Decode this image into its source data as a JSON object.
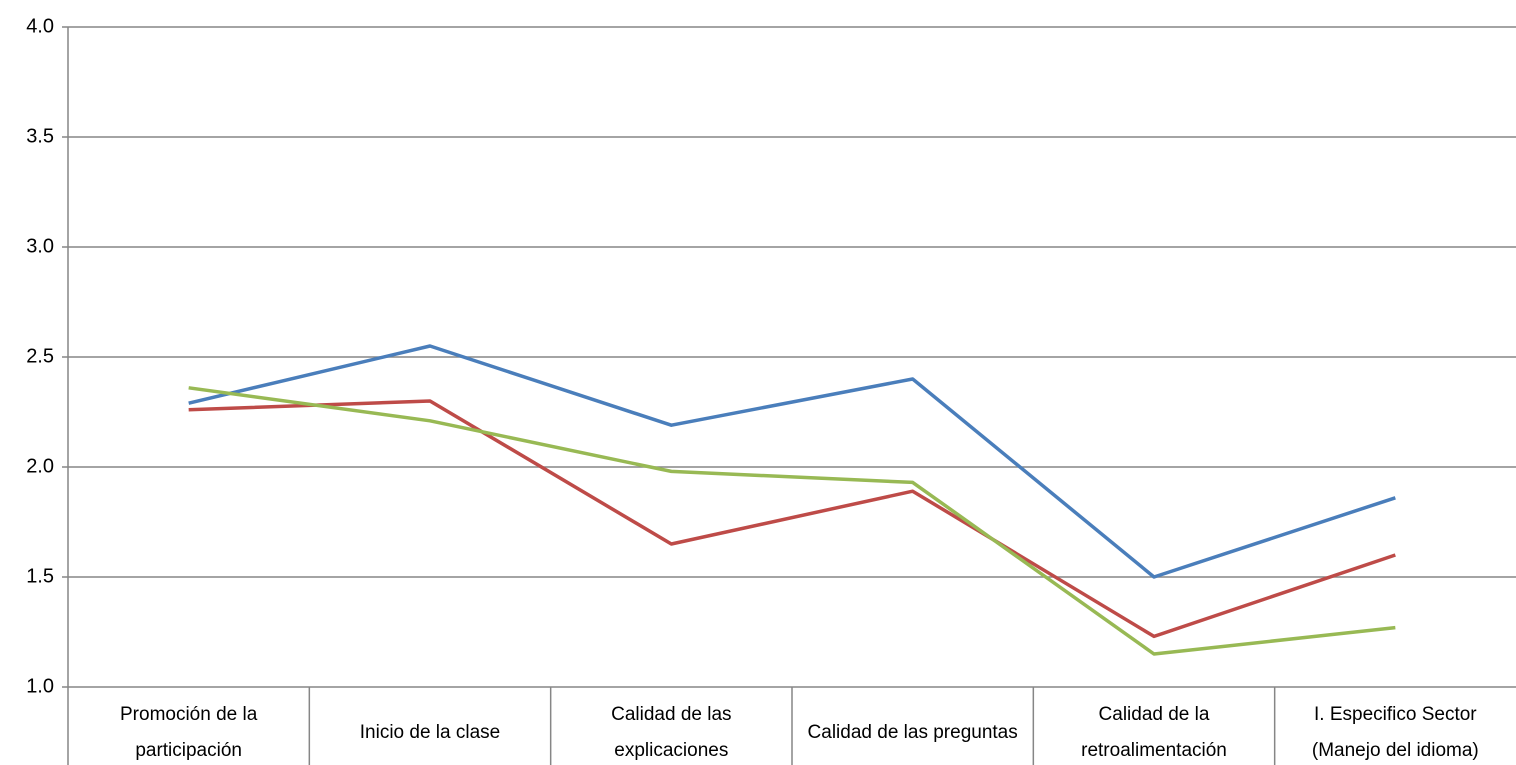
{
  "chart_data": {
    "type": "line",
    "categories": [
      "Promoción de la participación",
      "Inicio de la clase",
      "Calidad de las explicaciones",
      "Calidad de las preguntas",
      "Calidad de la retroalimentación",
      "I. Especifico Sector (Manejo del idioma)"
    ],
    "series": [
      {
        "color": "#4a7ebb",
        "values": [
          2.29,
          2.55,
          2.19,
          2.4,
          1.5,
          1.86
        ]
      },
      {
        "color": "#be4b48",
        "values": [
          2.26,
          2.3,
          1.65,
          1.89,
          1.23,
          1.6
        ]
      },
      {
        "color": "#98b954",
        "values": [
          2.36,
          2.21,
          1.98,
          1.93,
          1.15,
          1.27
        ]
      }
    ],
    "ylim": [
      1.0,
      4.0
    ],
    "yticks": [
      {
        "value": 1.0,
        "label": "1.0"
      },
      {
        "value": 1.5,
        "label": "1.5"
      },
      {
        "value": 2.0,
        "label": "2.0"
      },
      {
        "value": 2.5,
        "label": "2.5"
      },
      {
        "value": 3.0,
        "label": "3.0"
      },
      {
        "value": 3.5,
        "label": "3.5"
      },
      {
        "value": 4.0,
        "label": "4.0"
      }
    ],
    "grid": true
  }
}
